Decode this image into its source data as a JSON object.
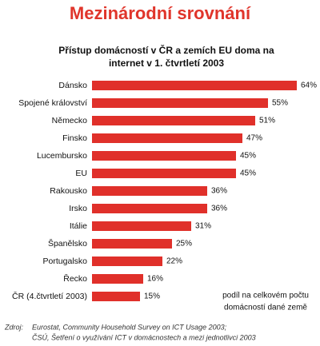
{
  "header": "Mezinárodní srovnání",
  "chart_data": {
    "type": "bar",
    "orientation": "horizontal",
    "title": [
      "Přístup domácností v ČR a zemích EU doma na",
      "internet  v 1. čtvrtletí 2003"
    ],
    "categories": [
      "Dánsko",
      "Spojené království",
      "Německo",
      "Finsko",
      "Lucembursko",
      "EU",
      "Rakousko",
      "Irsko",
      "Itálie",
      "Španělsko",
      "Portugalsko",
      "Řecko",
      "ČR (4.čtvrtletí 2003)"
    ],
    "values": [
      64,
      55,
      51,
      47,
      45,
      45,
      36,
      36,
      31,
      25,
      22,
      16,
      15
    ],
    "value_labels": [
      "64%",
      "55%",
      "51%",
      "47%",
      "45%",
      "45%",
      "36%",
      "36%",
      "31%",
      "25%",
      "22%",
      "16%",
      "15%"
    ],
    "color": "#e0302a"
  },
  "note": [
    "podíl  na celkovém počtu",
    "domácností dané země"
  ],
  "source": {
    "label": "Zdroj:",
    "lines": [
      "Eurostat, Community Household Survey on ICT Usage 2003;",
      "ČSÚ, Šetření o využívání ICT v domácnostech a mezi jednotlivci 2003"
    ]
  }
}
